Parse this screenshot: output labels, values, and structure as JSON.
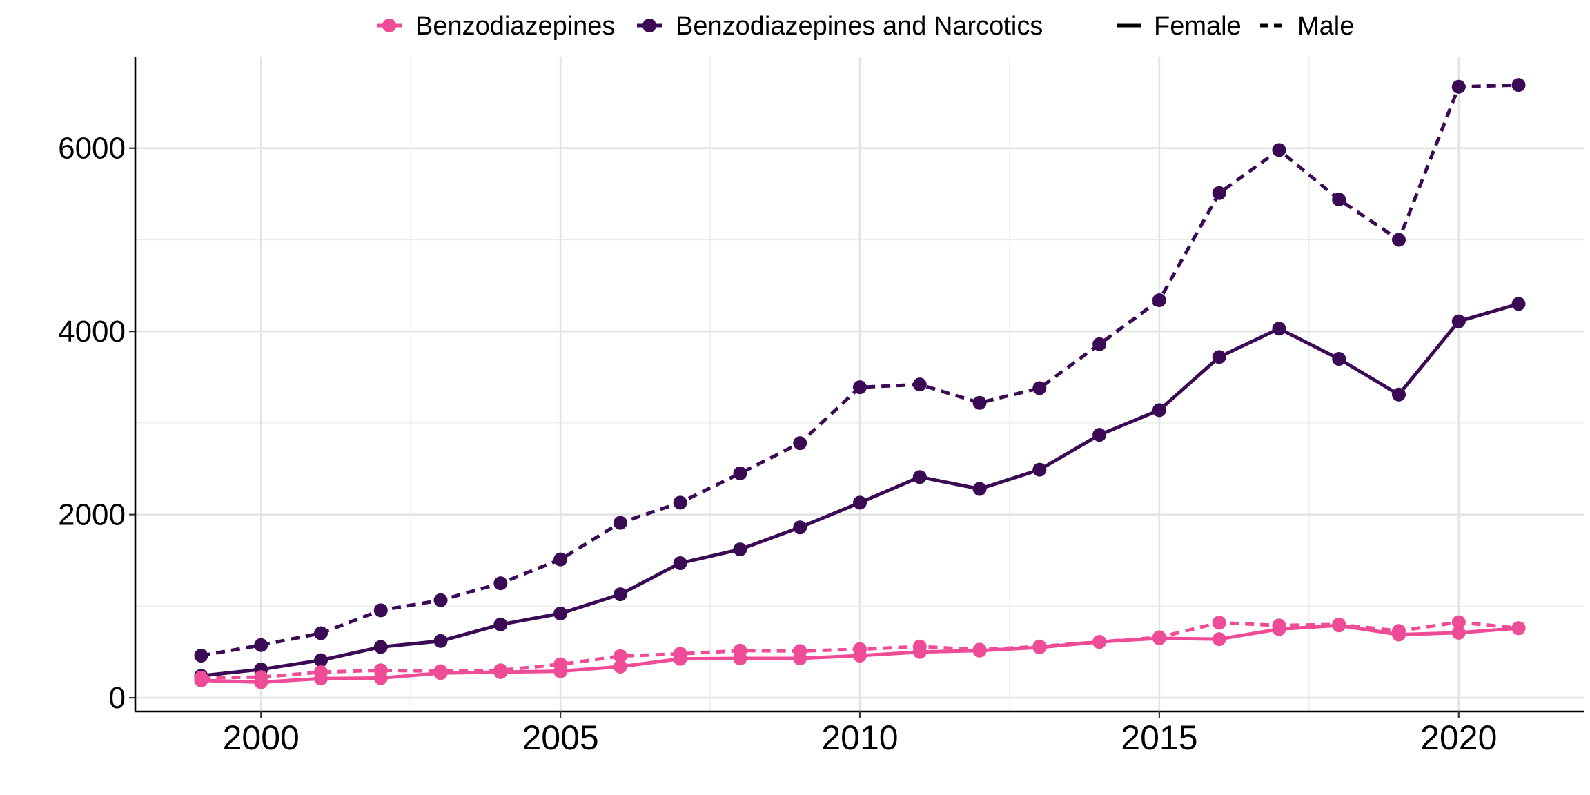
{
  "chart_data": {
    "type": "line",
    "title": "",
    "xlabel": "",
    "ylabel": "",
    "x": [
      1999,
      2000,
      2001,
      2002,
      2003,
      2004,
      2005,
      2006,
      2007,
      2008,
      2009,
      2010,
      2011,
      2012,
      2013,
      2014,
      2015,
      2016,
      2017,
      2018,
      2019,
      2020,
      2021
    ],
    "xlim": [
      1997.9,
      2022.1
    ],
    "ylim": [
      -150,
      7000
    ],
    "x_ticks": [
      2000,
      2005,
      2010,
      2015,
      2020
    ],
    "x_tick_labels": [
      "2000",
      "2005",
      "2010",
      "2015",
      "2020"
    ],
    "y_ticks": [
      0,
      2000,
      4000,
      6000
    ],
    "y_tick_labels": [
      "0",
      "2000",
      "4000",
      "6000"
    ],
    "y_minor_ticks": [
      1000,
      3000,
      5000
    ],
    "x_minor_ticks": [
      2002.5,
      2007.5,
      2012.5,
      2017.5
    ],
    "grid": true,
    "legend_position": "top",
    "colors": {
      "benzodiazepines": "#ee4c97",
      "benzodiazepines_and_narcotics": "#3b0a55"
    },
    "legend": {
      "drug_entries": [
        {
          "label": "Benzodiazepines",
          "color": "#ee4c97"
        },
        {
          "label": "Benzodiazepines and Narcotics",
          "color": "#3b0a55"
        }
      ],
      "sex_entries": [
        {
          "label": "Female",
          "style": "solid"
        },
        {
          "label": "Male",
          "style": "dashed"
        }
      ]
    },
    "series": [
      {
        "drug": "Benzodiazepines and Narcotics",
        "sex": "Male",
        "color": "#3b0a55",
        "style": "dashed",
        "values": [
          460,
          575,
          705,
          955,
          1065,
          1250,
          1510,
          1910,
          2130,
          2450,
          2780,
          3390,
          3420,
          3220,
          3380,
          3860,
          4340,
          5510,
          5980,
          5440,
          5000,
          6670,
          6690
        ]
      },
      {
        "drug": "Benzodiazepines and Narcotics",
        "sex": "Female",
        "color": "#3b0a55",
        "style": "solid",
        "values": [
          240,
          310,
          410,
          555,
          620,
          800,
          920,
          1130,
          1470,
          1620,
          1860,
          2130,
          2410,
          2280,
          2490,
          2870,
          3140,
          3720,
          4030,
          3700,
          3310,
          4110,
          4300
        ]
      },
      {
        "drug": "Benzodiazepines",
        "sex": "Male",
        "color": "#ee4c97",
        "style": "dashed",
        "values": [
          220,
          225,
          280,
          300,
          290,
          300,
          365,
          455,
          480,
          515,
          510,
          530,
          560,
          525,
          560,
          610,
          660,
          820,
          790,
          800,
          730,
          825,
          760
        ]
      },
      {
        "drug": "Benzodiazepines",
        "sex": "Female",
        "color": "#ee4c97",
        "style": "solid",
        "values": [
          190,
          170,
          210,
          215,
          270,
          280,
          290,
          340,
          425,
          430,
          430,
          460,
          500,
          515,
          550,
          610,
          650,
          640,
          750,
          790,
          690,
          710,
          760
        ]
      }
    ]
  }
}
